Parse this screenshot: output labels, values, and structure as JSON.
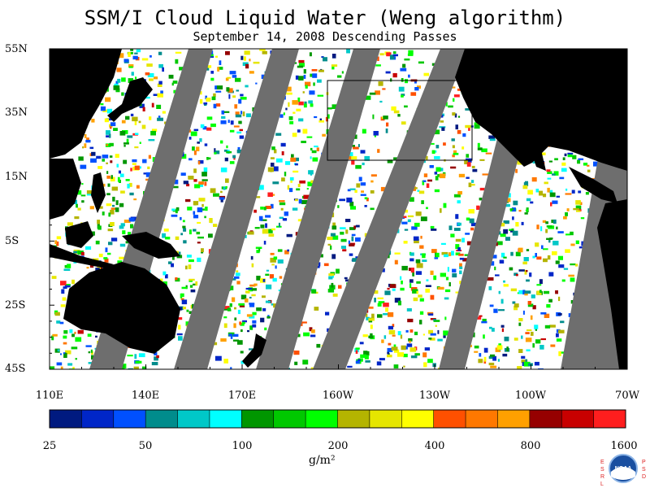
{
  "title": "SSM/I Cloud Liquid Water (Weng algorithm)",
  "subtitle": "September 14, 2008  Descending Passes",
  "latitude_labels": [
    "55N",
    "35N",
    "15N",
    "5S",
    "25S",
    "45S"
  ],
  "longitude_labels": [
    "110E",
    "140E",
    "170E",
    "160W",
    "130W",
    "100W",
    "70W"
  ],
  "colorbar": {
    "tick_labels": [
      "25",
      "50",
      "100",
      "200",
      "400",
      "800",
      "1600"
    ],
    "unit": "g/m²",
    "colors": [
      "#001a80",
      "#0026c8",
      "#0050ff",
      "#008c8c",
      "#00c8c8",
      "#00ffff",
      "#009600",
      "#00c800",
      "#00ff00",
      "#b4b400",
      "#e6e600",
      "#ffff00",
      "#ff5000",
      "#ff7800",
      "#ffa000",
      "#960000",
      "#c80000",
      "#ff1e1e"
    ]
  },
  "colors": {
    "land": "#000000",
    "no_data": "#6e6e6e",
    "clear": "#ffffff"
  },
  "logo": {
    "left_letters": "ESRL",
    "right_letters": "PSD",
    "name": "NOAA"
  }
}
